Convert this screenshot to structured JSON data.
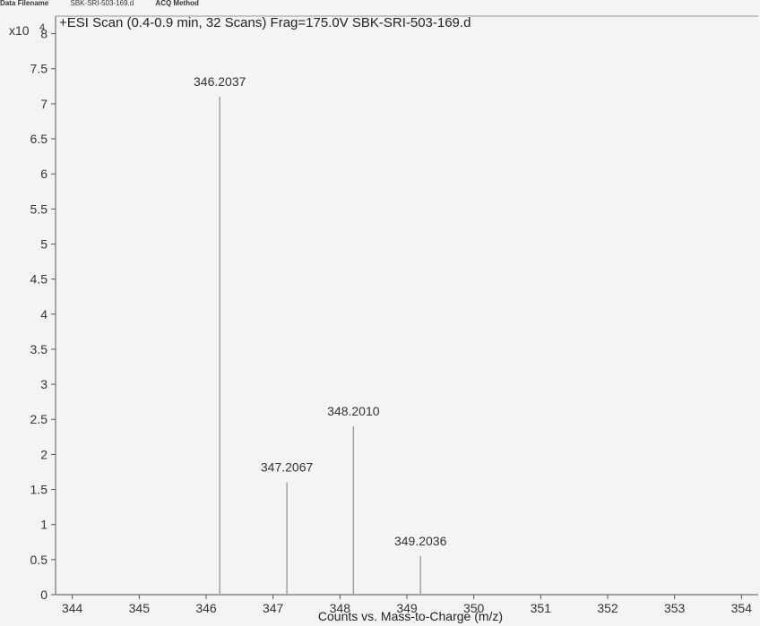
{
  "header": {
    "filename_label": "Data Filename",
    "filename_value": "SBK-SRI-503-169.d",
    "acq_label": "ACQ Method"
  },
  "chart_data": {
    "type": "bar",
    "title": "+ESI Scan (0.4-0.9 min, 32 Scans) Frag=175.0V SBK-SRI-503-169.d",
    "xlabel": "Counts vs. Mass-to-Charge (m/z)",
    "y_multiplier_label": "x10",
    "y_multiplier_exp": "4",
    "xlim": [
      343.75,
      354.25
    ],
    "ylim": [
      0,
      8.25
    ],
    "x_ticks": [
      344,
      345,
      346,
      347,
      348,
      349,
      350,
      351,
      352,
      353,
      354
    ],
    "y_ticks": [
      0,
      0.5,
      1,
      1.5,
      2,
      2.5,
      3,
      3.5,
      4,
      4.5,
      5,
      5.5,
      6,
      6.5,
      7,
      7.5,
      8
    ],
    "peaks": [
      {
        "mz": 346.2037,
        "intensity": 7.1,
        "label": "346.2037"
      },
      {
        "mz": 347.2067,
        "intensity": 1.6,
        "label": "347.2067"
      },
      {
        "mz": 348.201,
        "intensity": 2.4,
        "label": "348.2010"
      },
      {
        "mz": 349.2036,
        "intensity": 0.55,
        "label": "349.2036"
      }
    ],
    "grid": false,
    "colors": {
      "peak": "#9a9a9a",
      "axis": "#555555"
    }
  }
}
